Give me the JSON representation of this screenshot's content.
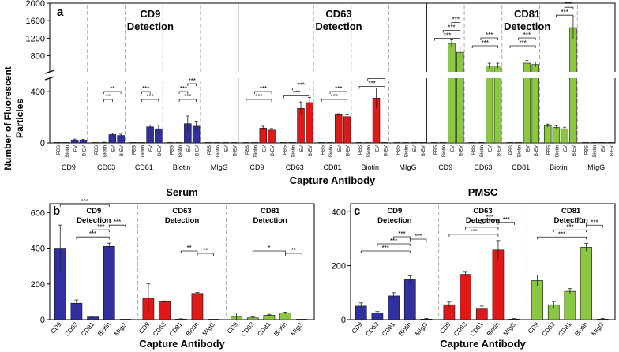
{
  "figure": {
    "y_axis_label_line1": "Number of Fluorescent",
    "y_axis_label_line2": "Particles"
  },
  "chart_data": [
    {
      "panel_letter": "a",
      "type": "bar",
      "xlabel": "Capture Antibody",
      "ylabel": "Number of Fluorescent Particles",
      "axis_break": {
        "lower": [
          0,
          500
        ],
        "upper": [
          450,
          2000
        ]
      },
      "y_ticks": [
        0,
        400,
        800,
        1200,
        1600,
        2000
      ],
      "sample_labels": [
        "PBS",
        "Biotin",
        "EV",
        "B-EV"
      ],
      "capture_groups": [
        "CD9",
        "CD63",
        "CD81",
        "Biotin",
        "MIgG"
      ],
      "detections": [
        {
          "title_line1": "CD9",
          "title_line2": "Detection",
          "color": "#3030a0",
          "values": [
            [
              0,
              0,
              22,
              20
            ],
            [
              0,
              3,
              65,
              58
            ],
            [
              0,
              0,
              125,
              110
            ],
            [
              0,
              0,
              150,
              130
            ],
            [
              0,
              0,
              0,
              0
            ]
          ],
          "errors": [
            [
              0,
              0,
              8,
              8
            ],
            [
              0,
              3,
              10,
              10
            ],
            [
              0,
              0,
              15,
              28
            ],
            [
              0,
              0,
              60,
              40
            ],
            [
              0,
              0,
              0,
              0
            ]
          ],
          "sig": [
            {
              "g": 1,
              "from": 1,
              "to": 2,
              "label": "**"
            },
            {
              "g": 1,
              "from": 1,
              "to": 3,
              "label": "**"
            },
            {
              "g": 2,
              "from": 1,
              "to": 3,
              "label": "***"
            },
            {
              "g": 2,
              "from": 1,
              "to": 2,
              "label": "***"
            },
            {
              "g": 3,
              "from": 1,
              "to": 3,
              "label": "***"
            },
            {
              "g": 3,
              "from": 1,
              "to": 2,
              "label": "***"
            },
            {
              "g": 3,
              "from": 2,
              "to": 3,
              "label": "***"
            }
          ]
        },
        {
          "title_line1": "CD63",
          "title_line2": "Detection",
          "color": "#e01818",
          "values": [
            [
              0,
              0,
              115,
              100
            ],
            [
              0,
              0,
              270,
              315
            ],
            [
              0,
              0,
              220,
              205
            ],
            [
              0,
              0,
              350,
              0
            ],
            [
              0,
              0,
              0,
              0
            ]
          ],
          "errors": [
            [
              0,
              0,
              15,
              12
            ],
            [
              0,
              0,
              50,
              40
            ],
            [
              0,
              0,
              8,
              15
            ],
            [
              0,
              0,
              80,
              0
            ],
            [
              0,
              0,
              0,
              0
            ]
          ],
          "sig": [
            {
              "g": 0,
              "from": 0,
              "to": 3,
              "label": "***"
            },
            {
              "g": 0,
              "from": 1,
              "to": 3,
              "label": "***"
            },
            {
              "g": 1,
              "from": 0,
              "to": 3,
              "label": "***"
            },
            {
              "g": 1,
              "from": 1,
              "to": 3,
              "label": "***"
            },
            {
              "g": 2,
              "from": 0,
              "to": 3,
              "label": "***"
            },
            {
              "g": 2,
              "from": 1,
              "to": 3,
              "label": "***"
            },
            {
              "g": 3,
              "from": 0,
              "to": 3,
              "label": "***"
            },
            {
              "g": 3,
              "from": 1,
              "to": 3,
              "label": "***"
            }
          ]
        },
        {
          "title_line1": "CD81",
          "title_line2": "Detection",
          "color": "#8ac840",
          "values": [
            [
              0,
              0,
              1080,
              880
            ],
            [
              0,
              0,
              570,
              570
            ],
            [
              0,
              0,
              630,
              600
            ],
            [
              135,
              120,
              110,
              1440
            ],
            [
              0,
              0,
              0,
              0
            ]
          ],
          "errors": [
            [
              0,
              0,
              80,
              120
            ],
            [
              0,
              0,
              60,
              60
            ],
            [
              0,
              0,
              60,
              60
            ],
            [
              12,
              15,
              12,
              250
            ],
            [
              0,
              0,
              0,
              0
            ]
          ],
          "sig": [
            {
              "g": 0,
              "from": 0,
              "to": 3,
              "label": "***"
            },
            {
              "g": 0,
              "from": 1,
              "to": 3,
              "label": "***"
            },
            {
              "g": 0,
              "from": 2,
              "to": 3,
              "label": "***"
            },
            {
              "g": 1,
              "from": 0,
              "to": 3,
              "label": "***"
            },
            {
              "g": 1,
              "from": 1,
              "to": 3,
              "label": "***"
            },
            {
              "g": 2,
              "from": 0,
              "to": 3,
              "label": "***"
            },
            {
              "g": 2,
              "from": 1,
              "to": 3,
              "label": "***"
            },
            {
              "g": 3,
              "from": 1,
              "to": 3,
              "label": "***"
            },
            {
              "g": 3,
              "from": 2,
              "to": 3,
              "label": "***"
            }
          ]
        }
      ]
    },
    {
      "panel_letter": "b",
      "panel_title": "Serum",
      "type": "bar",
      "xlabel": "Capture Antibody",
      "ylim": [
        0,
        650
      ],
      "y_ticks": [
        0,
        200,
        400,
        600
      ],
      "categories": [
        "CD9",
        "CD63",
        "CD81",
        "Biotin",
        "MIgG"
      ],
      "detections": [
        {
          "title_line1": "CD9",
          "title_line2": "Detection",
          "color": "#3030a0",
          "values": [
            400,
            92,
            15,
            410,
            0
          ],
          "errors": [
            130,
            18,
            5,
            18,
            0
          ],
          "sig": [
            {
              "from": 1,
              "to": 3,
              "label": "***"
            },
            {
              "from": 2,
              "to": 3,
              "label": "***"
            },
            {
              "from": 0,
              "to": 3,
              "label": "***"
            },
            {
              "from": 3,
              "to": 4,
              "label": "***"
            }
          ]
        },
        {
          "title_line1": "CD63",
          "title_line2": "Detection",
          "color": "#e01818",
          "values": [
            120,
            100,
            3,
            147,
            0
          ],
          "errors": [
            80,
            5,
            2,
            5,
            0
          ],
          "sig": [
            {
              "from": 2,
              "to": 3,
              "label": "**"
            },
            {
              "from": 3,
              "to": 4,
              "label": "**"
            }
          ]
        },
        {
          "title_line1": "CD81",
          "title_line2": "Detection",
          "color": "#8ac840",
          "values": [
            18,
            10,
            25,
            37,
            0
          ],
          "errors": [
            20,
            5,
            5,
            5,
            0
          ],
          "sig": [
            {
              "from": 1,
              "to": 3,
              "label": "*"
            },
            {
              "from": 3,
              "to": 4,
              "label": "**"
            }
          ]
        }
      ]
    },
    {
      "panel_letter": "c",
      "panel_title": "PMSC",
      "type": "bar",
      "xlabel": "Capture Antibody",
      "ylim": [
        0,
        430
      ],
      "y_ticks": [
        0,
        200,
        400
      ],
      "categories": [
        "CD9",
        "CD63",
        "CD81",
        "Biotin",
        "MIgG"
      ],
      "detections": [
        {
          "title_line1": "CD9",
          "title_line2": "Detection",
          "color": "#3030a0",
          "values": [
            50,
            25,
            88,
            148,
            2
          ],
          "errors": [
            12,
            5,
            12,
            15,
            2
          ],
          "sig": [
            {
              "from": 0,
              "to": 3,
              "label": "***"
            },
            {
              "from": 1,
              "to": 3,
              "label": "***"
            },
            {
              "from": 2,
              "to": 3,
              "label": "***"
            },
            {
              "from": 3,
              "to": 4,
              "label": "***"
            }
          ]
        },
        {
          "title_line1": "CD63",
          "title_line2": "Detection",
          "color": "#e01818",
          "values": [
            55,
            168,
            42,
            258,
            2
          ],
          "errors": [
            10,
            8,
            8,
            35,
            2
          ],
          "sig": [
            {
              "from": 0,
              "to": 3,
              "label": "***"
            },
            {
              "from": 1,
              "to": 3,
              "label": "**"
            },
            {
              "from": 2,
              "to": 3,
              "label": "***"
            },
            {
              "from": 3,
              "to": 4,
              "label": "***"
            }
          ]
        },
        {
          "title_line1": "CD81",
          "title_line2": "Detection",
          "color": "#8ac840",
          "values": [
            145,
            55,
            105,
            268,
            2
          ],
          "errors": [
            20,
            12,
            10,
            15,
            2
          ],
          "sig": [
            {
              "from": 0,
              "to": 3,
              "label": "***"
            },
            {
              "from": 1,
              "to": 3,
              "label": "***"
            },
            {
              "from": 2,
              "to": 3,
              "label": "***"
            },
            {
              "from": 3,
              "to": 4,
              "label": "***"
            }
          ]
        }
      ]
    }
  ]
}
